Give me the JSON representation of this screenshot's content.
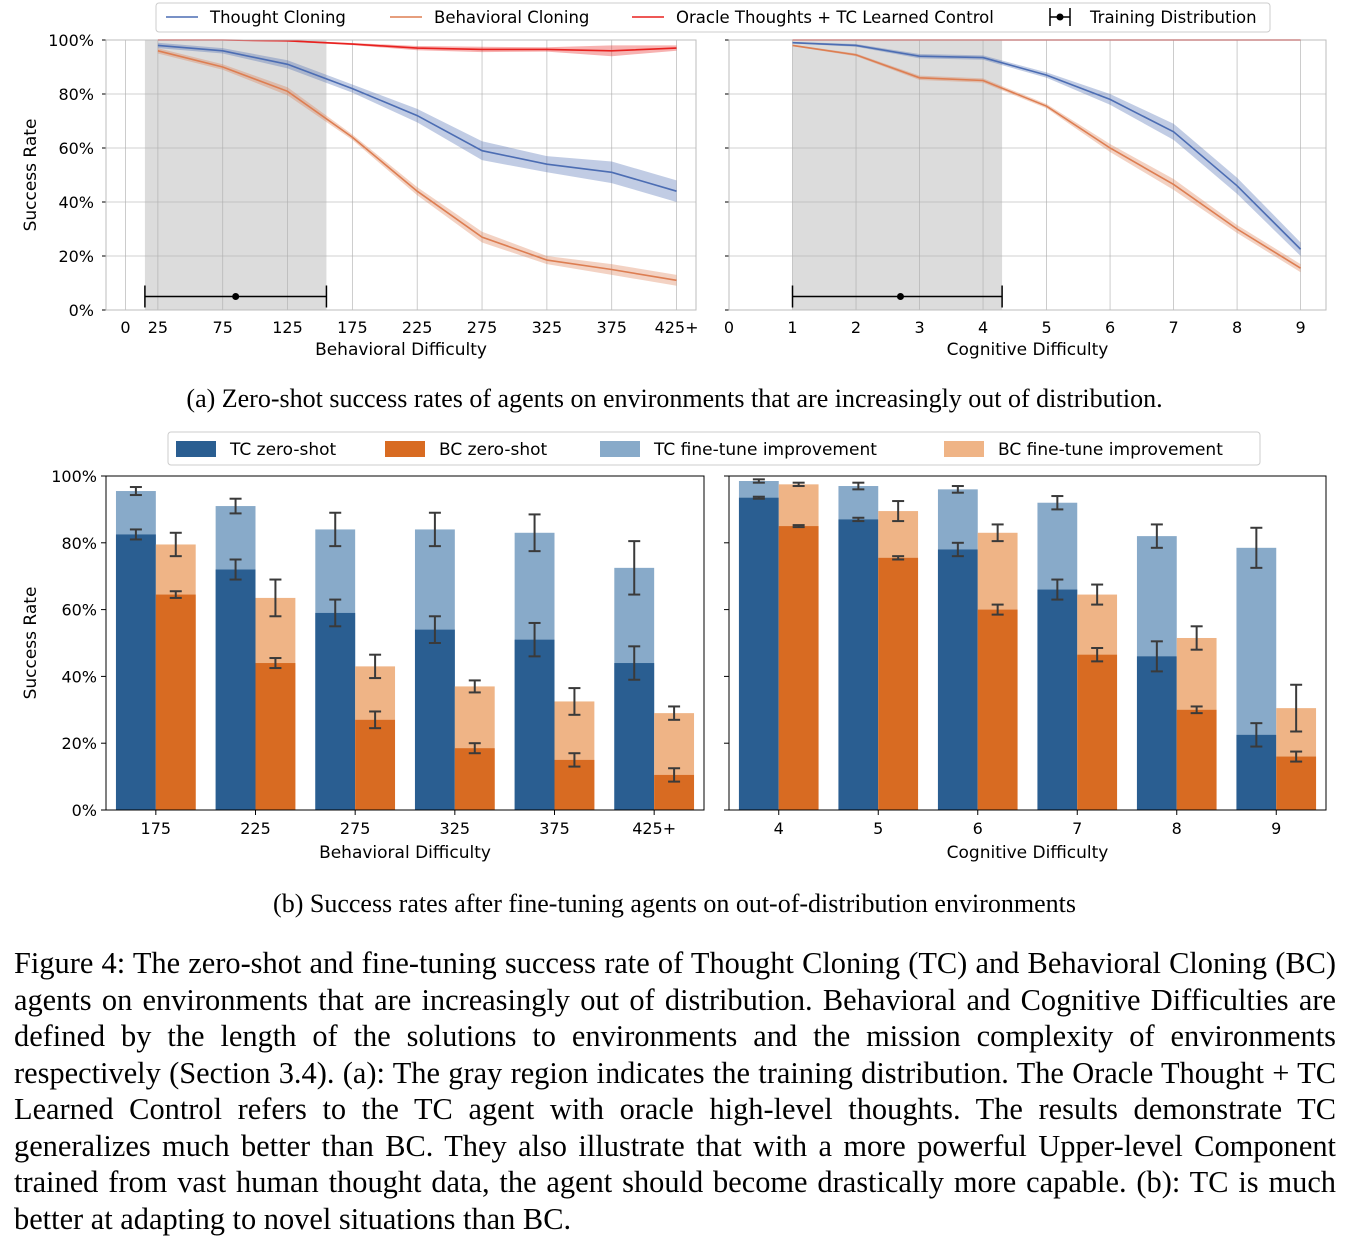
{
  "chart_data": [
    {
      "type": "line",
      "panel": "a-left",
      "xlabel": "Behavioral Difficulty",
      "ylabel": "Success Rate",
      "x_ticks": [
        "0",
        "25",
        "75",
        "125",
        "175",
        "225",
        "275",
        "325",
        "375",
        "425+"
      ],
      "x_tick_values": [
        0,
        25,
        75,
        125,
        175,
        225,
        275,
        325,
        375,
        425
      ],
      "y_ticks": [
        "0%",
        "20%",
        "40%",
        "60%",
        "80%",
        "100%"
      ],
      "xlim": [
        -15,
        440
      ],
      "ylim": [
        0,
        1.0
      ],
      "grid": true,
      "shaded_region": [
        15,
        155
      ],
      "training_distribution": {
        "low": 15,
        "high": 155,
        "point": 85,
        "y": 0.05
      },
      "series": [
        {
          "name": "Thought Cloning",
          "color": "#4c6db3",
          "x": [
            25,
            75,
            125,
            175,
            225,
            275,
            325,
            375,
            425
          ],
          "y": [
            0.98,
            0.96,
            0.91,
            0.82,
            0.72,
            0.59,
            0.54,
            0.51,
            0.44
          ],
          "band": [
            0.01,
            0.01,
            0.015,
            0.015,
            0.025,
            0.035,
            0.03,
            0.04,
            0.04
          ]
        },
        {
          "name": "Behavioral Cloning",
          "color": "#dd7e52",
          "x": [
            25,
            75,
            125,
            175,
            225,
            275,
            325,
            375,
            425
          ],
          "y": [
            0.96,
            0.9,
            0.81,
            0.64,
            0.44,
            0.27,
            0.185,
            0.15,
            0.11
          ],
          "band": [
            0.01,
            0.01,
            0.015,
            0.01,
            0.015,
            0.02,
            0.015,
            0.02,
            0.02
          ]
        },
        {
          "name": "Oracle Thoughts + TC Learned Control",
          "color": "#e8211f",
          "x": [
            25,
            75,
            125,
            175,
            225,
            275,
            325,
            375,
            425
          ],
          "y": [
            1.0,
            1.0,
            0.997,
            0.985,
            0.97,
            0.965,
            0.965,
            0.96,
            0.97
          ],
          "band": [
            0.002,
            0.002,
            0.003,
            0.004,
            0.008,
            0.01,
            0.008,
            0.02,
            0.01
          ]
        }
      ]
    },
    {
      "type": "line",
      "panel": "a-right",
      "xlabel": "Cognitive Difficulty",
      "ylabel": "",
      "x_ticks": [
        "0",
        "1",
        "2",
        "3",
        "4",
        "5",
        "6",
        "7",
        "8",
        "9"
      ],
      "x_tick_values": [
        0,
        1,
        2,
        3,
        4,
        5,
        6,
        7,
        8,
        9
      ],
      "y_ticks": [
        "0%",
        "20%",
        "40%",
        "60%",
        "80%",
        "100%"
      ],
      "xlim": [
        0,
        9.4
      ],
      "ylim": [
        0,
        1.0
      ],
      "grid": true,
      "shaded_region": [
        1,
        4.3
      ],
      "training_distribution": {
        "low": 1,
        "high": 4.3,
        "point": 2.7,
        "y": 0.05
      },
      "series": [
        {
          "name": "Thought Cloning",
          "color": "#4c6db3",
          "x": [
            1,
            2,
            3,
            4,
            5,
            6,
            7,
            8,
            9
          ],
          "y": [
            0.99,
            0.98,
            0.94,
            0.935,
            0.87,
            0.78,
            0.66,
            0.46,
            0.225
          ],
          "band": [
            0.003,
            0.005,
            0.008,
            0.008,
            0.01,
            0.02,
            0.03,
            0.03,
            0.025
          ]
        },
        {
          "name": "Behavioral Cloning",
          "color": "#dd7e52",
          "x": [
            1,
            2,
            3,
            4,
            5,
            6,
            7,
            8,
            9
          ],
          "y": [
            0.98,
            0.945,
            0.86,
            0.85,
            0.755,
            0.6,
            0.465,
            0.3,
            0.155
          ],
          "band": [
            0.003,
            0.005,
            0.008,
            0.008,
            0.008,
            0.015,
            0.02,
            0.015,
            0.015
          ]
        },
        {
          "name": "Oracle Thoughts + TC Learned Control",
          "color": "#e8211f",
          "x": [
            1,
            2,
            3,
            4,
            5,
            6,
            7,
            8,
            9
          ],
          "y": [
            1.0,
            1.0,
            1.0,
            1.0,
            1.0,
            1.0,
            1.0,
            1.0,
            1.0
          ],
          "band": [
            0.001,
            0.001,
            0.001,
            0.001,
            0.001,
            0.001,
            0.001,
            0.001,
            0.001
          ]
        }
      ]
    },
    {
      "type": "bar",
      "panel": "b-left",
      "xlabel": "Behavioral Difficulty",
      "ylabel": "Success Rate",
      "categories": [
        "175",
        "225",
        "275",
        "325",
        "375",
        "425+"
      ],
      "y_ticks": [
        "0%",
        "20%",
        "40%",
        "60%",
        "80%",
        "100%"
      ],
      "ylim": [
        0,
        1.0
      ],
      "series": [
        {
          "name": "TC zero-shot",
          "values": [
            0.825,
            0.72,
            0.59,
            0.54,
            0.51,
            0.44
          ],
          "err": [
            0.015,
            0.03,
            0.04,
            0.04,
            0.05,
            0.05
          ]
        },
        {
          "name": "BC zero-shot",
          "values": [
            0.645,
            0.44,
            0.27,
            0.185,
            0.15,
            0.105
          ],
          "err": [
            0.01,
            0.015,
            0.025,
            0.015,
            0.02,
            0.02
          ]
        },
        {
          "name": "TC fine-tune improvement",
          "values": [
            0.955,
            0.91,
            0.84,
            0.84,
            0.83,
            0.725
          ],
          "err": [
            0.012,
            0.022,
            0.05,
            0.05,
            0.055,
            0.08
          ]
        },
        {
          "name": "BC fine-tune improvement",
          "values": [
            0.795,
            0.635,
            0.43,
            0.37,
            0.325,
            0.29
          ],
          "err": [
            0.035,
            0.055,
            0.035,
            0.018,
            0.04,
            0.02
          ]
        }
      ]
    },
    {
      "type": "bar",
      "panel": "b-right",
      "xlabel": "Cognitive Difficulty",
      "ylabel": "",
      "categories": [
        "4",
        "5",
        "6",
        "7",
        "8",
        "9"
      ],
      "y_ticks": [
        "0%",
        "20%",
        "40%",
        "60%",
        "80%",
        "100%"
      ],
      "ylim": [
        0,
        1.0
      ],
      "series": [
        {
          "name": "TC zero-shot",
          "values": [
            0.935,
            0.87,
            0.78,
            0.66,
            0.46,
            0.225
          ],
          "err": [
            0.003,
            0.005,
            0.02,
            0.03,
            0.045,
            0.035
          ]
        },
        {
          "name": "BC zero-shot",
          "values": [
            0.85,
            0.755,
            0.6,
            0.465,
            0.3,
            0.16
          ],
          "err": [
            0.003,
            0.005,
            0.015,
            0.02,
            0.01,
            0.015
          ]
        },
        {
          "name": "TC fine-tune improvement",
          "values": [
            0.985,
            0.97,
            0.96,
            0.92,
            0.82,
            0.785
          ],
          "err": [
            0.005,
            0.01,
            0.01,
            0.02,
            0.035,
            0.06
          ]
        },
        {
          "name": "BC fine-tune improvement",
          "values": [
            0.975,
            0.895,
            0.83,
            0.645,
            0.515,
            0.305
          ],
          "err": [
            0.005,
            0.03,
            0.025,
            0.03,
            0.035,
            0.07
          ]
        }
      ]
    }
  ],
  "legend_a": [
    "Thought Cloning",
    "Behavioral Cloning",
    "Oracle Thoughts + TC Learned Control",
    "Training Distribution"
  ],
  "legend_b": [
    "TC zero-shot",
    "BC zero-shot",
    "TC fine-tune improvement",
    "BC fine-tune improvement"
  ],
  "colors": {
    "tc": "#4c6db3",
    "bc": "#dd7e52",
    "oracle": "#e8211f",
    "tc_bar": "#2a5e91",
    "bc_bar": "#d86b22",
    "tc_ft": "#88aac9",
    "bc_ft": "#efb486",
    "shade": "#dcdcdc"
  },
  "caption_a": "(a) Zero-shot success rates of agents on environments that are increasingly out of distribution.",
  "caption_b": "(b) Success rates after fine-tuning agents on out-of-distribution environments",
  "figure_caption": "Figure 4: The zero-shot and fine-tuning success rate of Thought Cloning (TC) and Behavioral Cloning (BC) agents on environments that are increasingly out of distribution. Behavioral and Cognitive Difficulties are defined by the length of the solutions to environments and the mission complexity of environments respectively (Section 3.4). (a): The gray region indicates the training distribution. The Oracle Thought + TC Learned Control refers to the TC agent with oracle high-level thoughts. The results demonstrate TC generalizes much better than BC. They also illustrate that with a more powerful Upper-level Component trained from vast human thought data, the agent should become drastically more capable. (b): TC is much better at adapting to novel situations than BC."
}
